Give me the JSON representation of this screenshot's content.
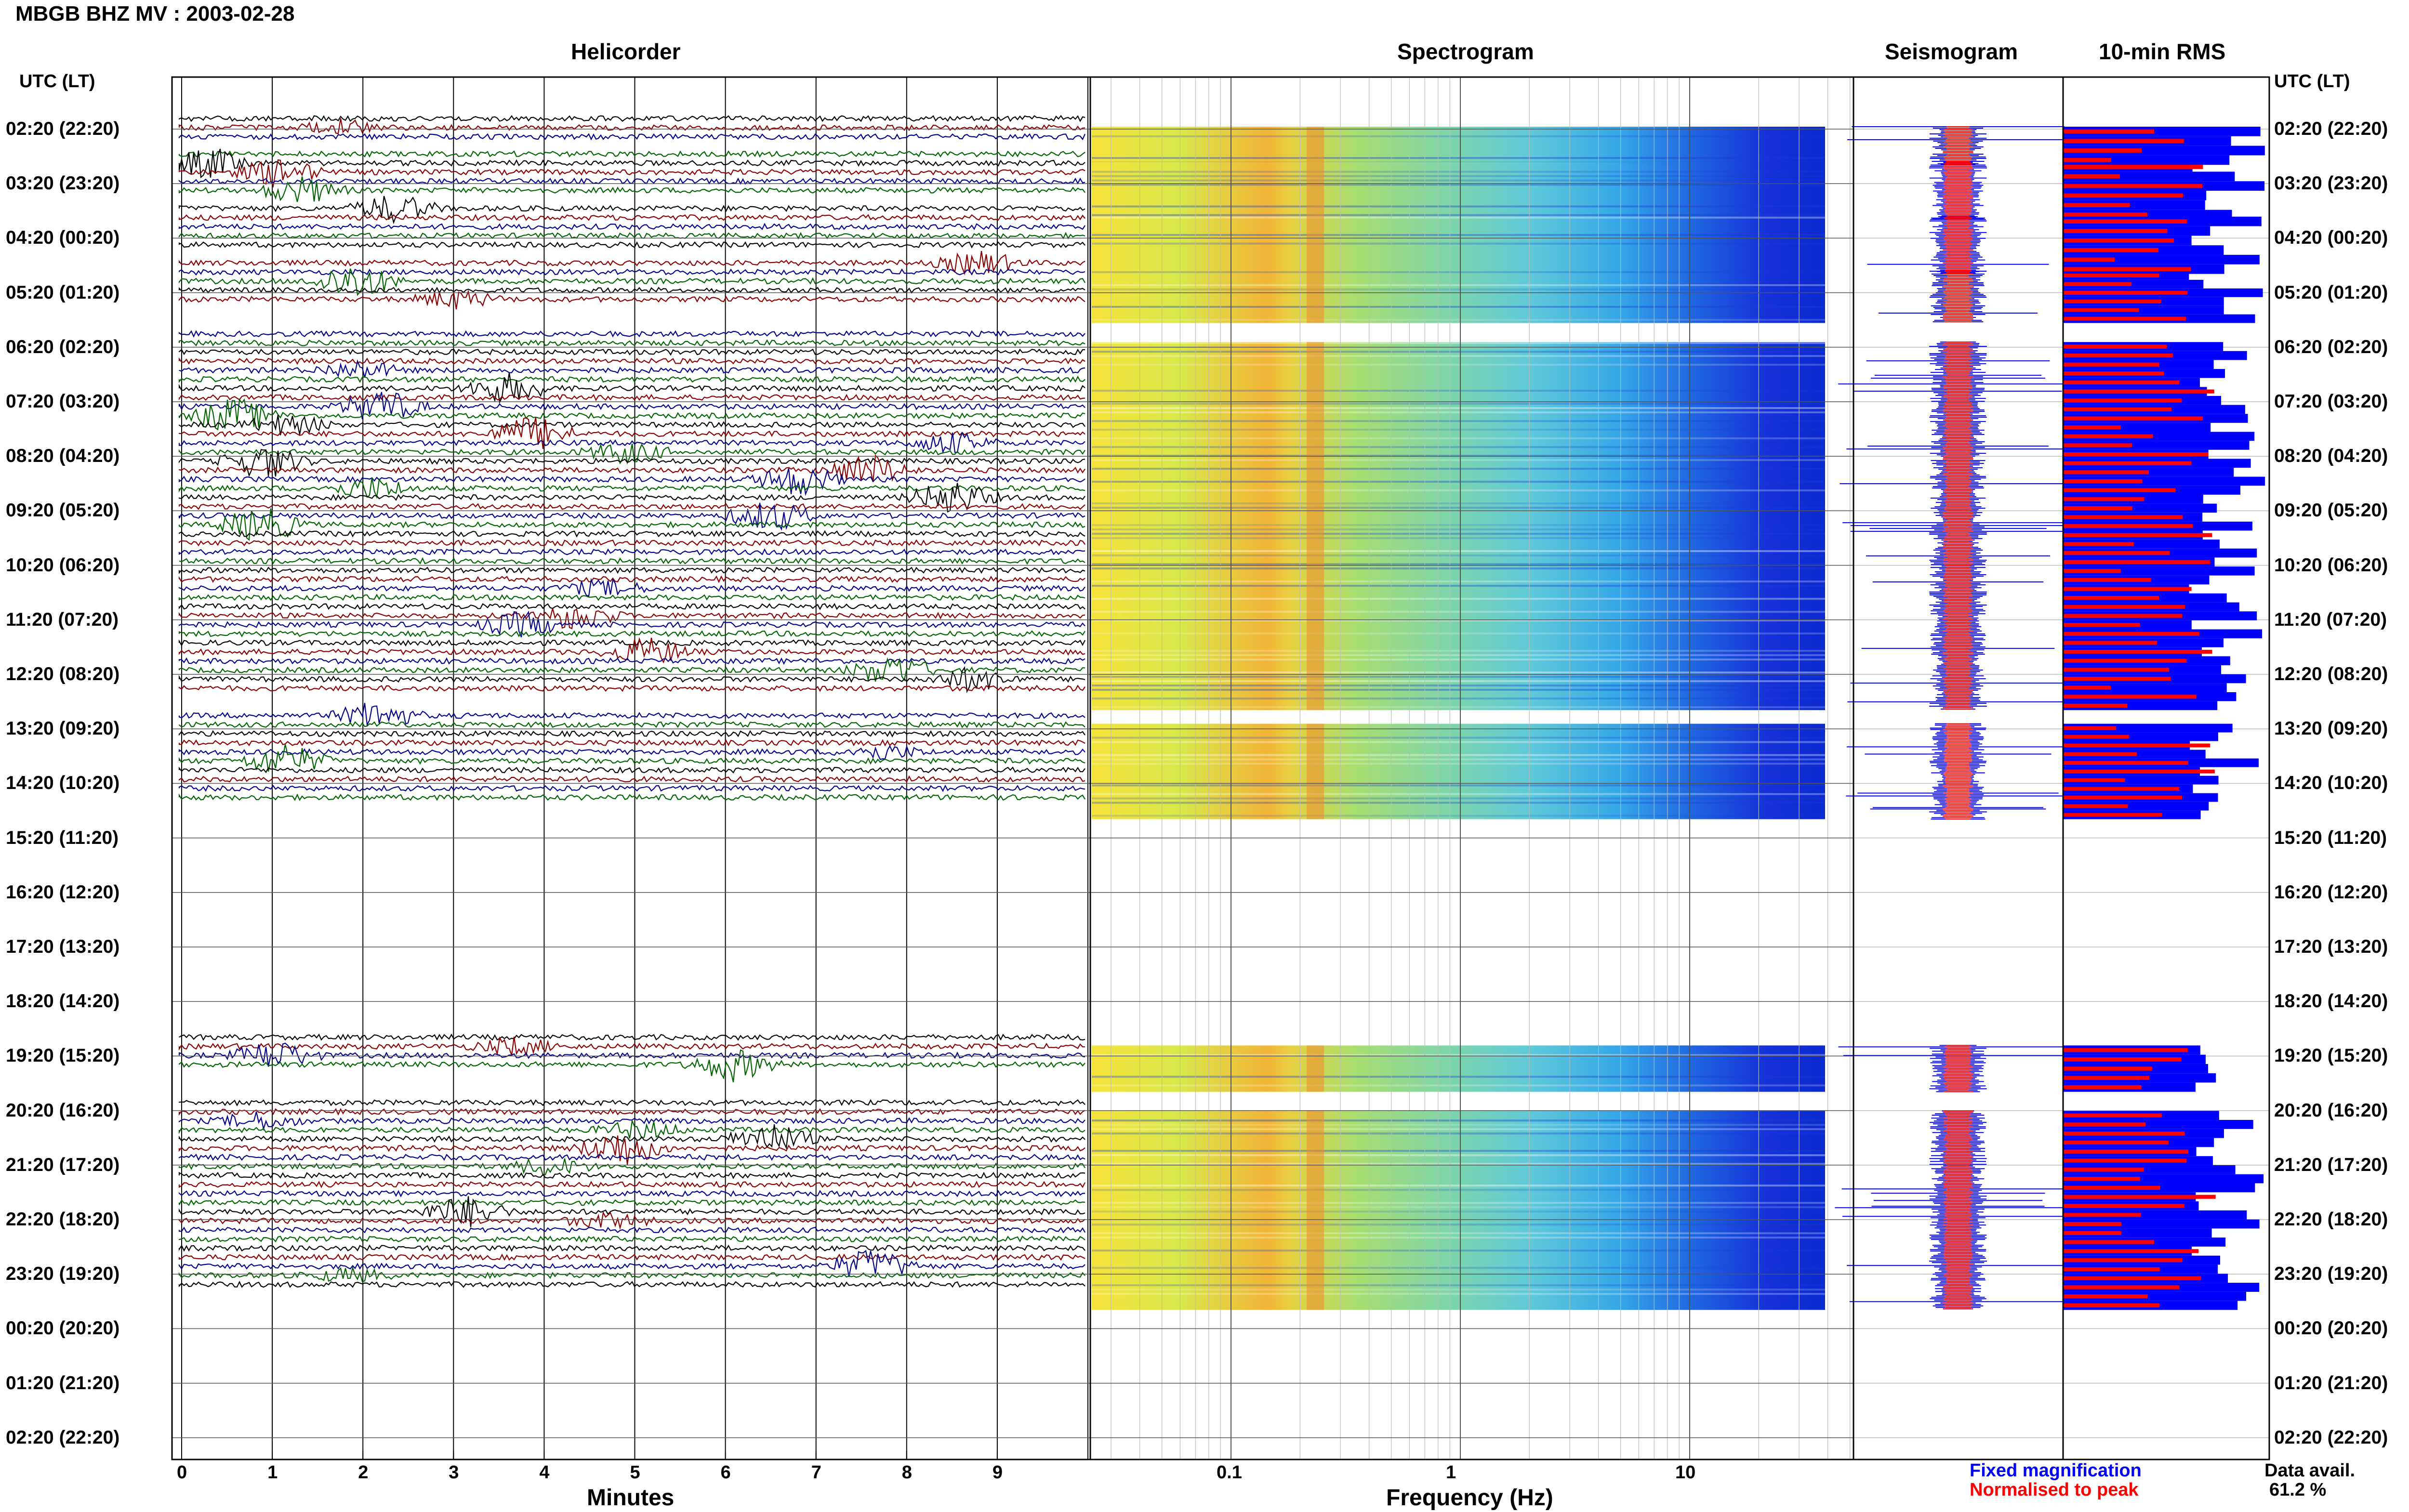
{
  "header": {
    "title": "MBGB BHZ MV : 2003-02-28"
  },
  "panels": {
    "helicorder": "Helicorder",
    "spectrogram": "Spectrogram",
    "seismogram": "Seismogram",
    "rms": "10-min RMS"
  },
  "axes": {
    "time_header_left": "UTC (LT)",
    "time_header_right": "UTC (LT)",
    "minutes_label": "Minutes",
    "frequency_label": "Frequency (Hz)"
  },
  "legend": {
    "fixed": "Fixed magnification",
    "normalised": "Normalised to peak",
    "fixed_color": "#0000ff",
    "normalised_color": "#ff0000"
  },
  "availability": {
    "label": "Data avail.",
    "value": "61.2 %"
  },
  "colors": {
    "trace1": "#000000",
    "trace2": "#8b0000",
    "trace3": "#00008b",
    "trace4": "#006400"
  },
  "chart_data": {
    "type": "heatmap",
    "time_rows": [
      "02:20 (22:20)",
      "03:20 (23:20)",
      "04:20 (00:20)",
      "05:20 (01:20)",
      "06:20 (02:20)",
      "07:20 (03:20)",
      "08:20 (04:20)",
      "09:20 (05:20)",
      "10:20 (06:20)",
      "11:20 (07:20)",
      "12:20 (08:20)",
      "13:20 (09:20)",
      "14:20 (10:20)",
      "15:20 (11:20)",
      "16:20 (12:20)",
      "17:20 (13:20)",
      "18:20 (14:20)",
      "19:20 (15:20)",
      "20:20 (16:20)",
      "21:20 (17:20)",
      "22:20 (18:20)",
      "23:20 (19:20)",
      "00:20 (20:20)",
      "01:20 (21:20)",
      "02:20 (22:20)"
    ],
    "minutes_ticks": [
      "0",
      "1",
      "2",
      "3",
      "4",
      "5",
      "6",
      "7",
      "8",
      "9"
    ],
    "frequency_ticks": [
      "0.1",
      "1",
      "10"
    ],
    "frequency_scale": "log",
    "data_blocks_hours": [
      [
        0,
        0.55
      ],
      [
        0.65,
        1.55
      ],
      [
        1.65,
        2.55
      ],
      [
        2.65,
        3.45
      ],
      [
        3.95,
        10.55
      ],
      [
        10.95,
        12.55
      ],
      [
        16.85,
        17.55
      ],
      [
        18.05,
        21.55
      ]
    ]
  }
}
